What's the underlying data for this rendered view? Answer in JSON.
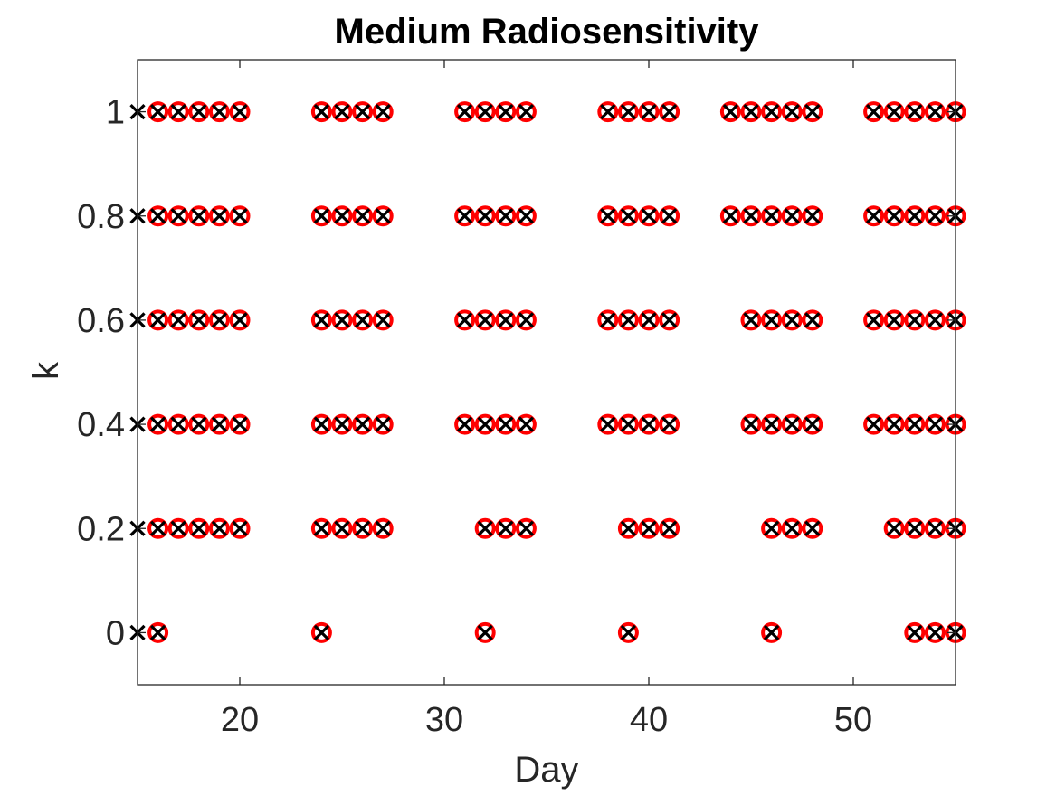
{
  "chart_data": {
    "type": "scatter",
    "title": "Medium Radiosensitivity",
    "xlabel": "Day",
    "ylabel": "k",
    "xlim": [
      15,
      55
    ],
    "ylim": [
      -0.1,
      1.1
    ],
    "xticks": [
      20,
      30,
      40,
      50
    ],
    "yticks": [
      0,
      0.2,
      0.4,
      0.6,
      0.8,
      1
    ],
    "ytick_labels": [
      "0",
      "0.2",
      "0.4",
      "0.6",
      "0.8",
      "1"
    ],
    "grid": false,
    "legend": "none",
    "series": [
      {
        "marker": "circle",
        "color": "#ff0000",
        "points": [
          [
            16,
            1
          ],
          [
            17,
            1
          ],
          [
            18,
            1
          ],
          [
            19,
            1
          ],
          [
            20,
            1
          ],
          [
            24,
            1
          ],
          [
            25,
            1
          ],
          [
            26,
            1
          ],
          [
            27,
            1
          ],
          [
            31,
            1
          ],
          [
            32,
            1
          ],
          [
            33,
            1
          ],
          [
            34,
            1
          ],
          [
            38,
            1
          ],
          [
            39,
            1
          ],
          [
            40,
            1
          ],
          [
            41,
            1
          ],
          [
            44,
            1
          ],
          [
            45,
            1
          ],
          [
            46,
            1
          ],
          [
            47,
            1
          ],
          [
            48,
            1
          ],
          [
            51,
            1
          ],
          [
            52,
            1
          ],
          [
            53,
            1
          ],
          [
            54,
            1
          ],
          [
            55,
            1
          ],
          [
            16,
            0.8
          ],
          [
            17,
            0.8
          ],
          [
            18,
            0.8
          ],
          [
            19,
            0.8
          ],
          [
            20,
            0.8
          ],
          [
            24,
            0.8
          ],
          [
            25,
            0.8
          ],
          [
            26,
            0.8
          ],
          [
            27,
            0.8
          ],
          [
            31,
            0.8
          ],
          [
            32,
            0.8
          ],
          [
            33,
            0.8
          ],
          [
            34,
            0.8
          ],
          [
            38,
            0.8
          ],
          [
            39,
            0.8
          ],
          [
            40,
            0.8
          ],
          [
            41,
            0.8
          ],
          [
            44,
            0.8
          ],
          [
            45,
            0.8
          ],
          [
            46,
            0.8
          ],
          [
            47,
            0.8
          ],
          [
            48,
            0.8
          ],
          [
            51,
            0.8
          ],
          [
            52,
            0.8
          ],
          [
            53,
            0.8
          ],
          [
            54,
            0.8
          ],
          [
            55,
            0.8
          ],
          [
            16,
            0.6
          ],
          [
            17,
            0.6
          ],
          [
            18,
            0.6
          ],
          [
            19,
            0.6
          ],
          [
            20,
            0.6
          ],
          [
            24,
            0.6
          ],
          [
            25,
            0.6
          ],
          [
            26,
            0.6
          ],
          [
            27,
            0.6
          ],
          [
            31,
            0.6
          ],
          [
            32,
            0.6
          ],
          [
            33,
            0.6
          ],
          [
            34,
            0.6
          ],
          [
            38,
            0.6
          ],
          [
            39,
            0.6
          ],
          [
            40,
            0.6
          ],
          [
            41,
            0.6
          ],
          [
            45,
            0.6
          ],
          [
            46,
            0.6
          ],
          [
            47,
            0.6
          ],
          [
            48,
            0.6
          ],
          [
            51,
            0.6
          ],
          [
            52,
            0.6
          ],
          [
            53,
            0.6
          ],
          [
            54,
            0.6
          ],
          [
            55,
            0.6
          ],
          [
            16,
            0.4
          ],
          [
            17,
            0.4
          ],
          [
            18,
            0.4
          ],
          [
            19,
            0.4
          ],
          [
            20,
            0.4
          ],
          [
            24,
            0.4
          ],
          [
            25,
            0.4
          ],
          [
            26,
            0.4
          ],
          [
            27,
            0.4
          ],
          [
            31,
            0.4
          ],
          [
            32,
            0.4
          ],
          [
            33,
            0.4
          ],
          [
            34,
            0.4
          ],
          [
            38,
            0.4
          ],
          [
            39,
            0.4
          ],
          [
            40,
            0.4
          ],
          [
            41,
            0.4
          ],
          [
            45,
            0.4
          ],
          [
            46,
            0.4
          ],
          [
            47,
            0.4
          ],
          [
            48,
            0.4
          ],
          [
            51,
            0.4
          ],
          [
            52,
            0.4
          ],
          [
            53,
            0.4
          ],
          [
            54,
            0.4
          ],
          [
            55,
            0.4
          ],
          [
            16,
            0.2
          ],
          [
            17,
            0.2
          ],
          [
            18,
            0.2
          ],
          [
            19,
            0.2
          ],
          [
            20,
            0.2
          ],
          [
            24,
            0.2
          ],
          [
            25,
            0.2
          ],
          [
            26,
            0.2
          ],
          [
            27,
            0.2
          ],
          [
            32,
            0.2
          ],
          [
            33,
            0.2
          ],
          [
            34,
            0.2
          ],
          [
            39,
            0.2
          ],
          [
            40,
            0.2
          ],
          [
            41,
            0.2
          ],
          [
            46,
            0.2
          ],
          [
            47,
            0.2
          ],
          [
            48,
            0.2
          ],
          [
            52,
            0.2
          ],
          [
            53,
            0.2
          ],
          [
            54,
            0.2
          ],
          [
            55,
            0.2
          ],
          [
            16,
            0
          ],
          [
            24,
            0
          ],
          [
            32,
            0
          ],
          [
            39,
            0
          ],
          [
            46,
            0
          ],
          [
            53,
            0
          ],
          [
            54,
            0
          ],
          [
            55,
            0
          ]
        ]
      },
      {
        "marker": "x",
        "color": "#000000",
        "points": [
          [
            15,
            1
          ],
          [
            16,
            1
          ],
          [
            17,
            1
          ],
          [
            18,
            1
          ],
          [
            19,
            1
          ],
          [
            20,
            1
          ],
          [
            24,
            1
          ],
          [
            25,
            1
          ],
          [
            26,
            1
          ],
          [
            27,
            1
          ],
          [
            31,
            1
          ],
          [
            32,
            1
          ],
          [
            33,
            1
          ],
          [
            34,
            1
          ],
          [
            38,
            1
          ],
          [
            39,
            1
          ],
          [
            40,
            1
          ],
          [
            41,
            1
          ],
          [
            44,
            1
          ],
          [
            45,
            1
          ],
          [
            46,
            1
          ],
          [
            47,
            1
          ],
          [
            48,
            1
          ],
          [
            51,
            1
          ],
          [
            52,
            1
          ],
          [
            53,
            1
          ],
          [
            54,
            1
          ],
          [
            55,
            1
          ],
          [
            15,
            0.8
          ],
          [
            16,
            0.8
          ],
          [
            17,
            0.8
          ],
          [
            18,
            0.8
          ],
          [
            19,
            0.8
          ],
          [
            20,
            0.8
          ],
          [
            24,
            0.8
          ],
          [
            25,
            0.8
          ],
          [
            26,
            0.8
          ],
          [
            27,
            0.8
          ],
          [
            31,
            0.8
          ],
          [
            32,
            0.8
          ],
          [
            33,
            0.8
          ],
          [
            34,
            0.8
          ],
          [
            38,
            0.8
          ],
          [
            39,
            0.8
          ],
          [
            40,
            0.8
          ],
          [
            41,
            0.8
          ],
          [
            44,
            0.8
          ],
          [
            45,
            0.8
          ],
          [
            46,
            0.8
          ],
          [
            47,
            0.8
          ],
          [
            48,
            0.8
          ],
          [
            51,
            0.8
          ],
          [
            52,
            0.8
          ],
          [
            53,
            0.8
          ],
          [
            54,
            0.8
          ],
          [
            55,
            0.8
          ],
          [
            15,
            0.6
          ],
          [
            16,
            0.6
          ],
          [
            17,
            0.6
          ],
          [
            18,
            0.6
          ],
          [
            19,
            0.6
          ],
          [
            20,
            0.6
          ],
          [
            24,
            0.6
          ],
          [
            25,
            0.6
          ],
          [
            26,
            0.6
          ],
          [
            27,
            0.6
          ],
          [
            31,
            0.6
          ],
          [
            32,
            0.6
          ],
          [
            33,
            0.6
          ],
          [
            34,
            0.6
          ],
          [
            38,
            0.6
          ],
          [
            39,
            0.6
          ],
          [
            40,
            0.6
          ],
          [
            41,
            0.6
          ],
          [
            45,
            0.6
          ],
          [
            46,
            0.6
          ],
          [
            47,
            0.6
          ],
          [
            48,
            0.6
          ],
          [
            51,
            0.6
          ],
          [
            52,
            0.6
          ],
          [
            53,
            0.6
          ],
          [
            54,
            0.6
          ],
          [
            55,
            0.6
          ],
          [
            15,
            0.4
          ],
          [
            16,
            0.4
          ],
          [
            17,
            0.4
          ],
          [
            18,
            0.4
          ],
          [
            19,
            0.4
          ],
          [
            20,
            0.4
          ],
          [
            24,
            0.4
          ],
          [
            25,
            0.4
          ],
          [
            26,
            0.4
          ],
          [
            27,
            0.4
          ],
          [
            31,
            0.4
          ],
          [
            32,
            0.4
          ],
          [
            33,
            0.4
          ],
          [
            34,
            0.4
          ],
          [
            38,
            0.4
          ],
          [
            39,
            0.4
          ],
          [
            40,
            0.4
          ],
          [
            41,
            0.4
          ],
          [
            45,
            0.4
          ],
          [
            46,
            0.4
          ],
          [
            47,
            0.4
          ],
          [
            48,
            0.4
          ],
          [
            51,
            0.4
          ],
          [
            52,
            0.4
          ],
          [
            53,
            0.4
          ],
          [
            54,
            0.4
          ],
          [
            55,
            0.4
          ],
          [
            15,
            0.2
          ],
          [
            16,
            0.2
          ],
          [
            17,
            0.2
          ],
          [
            18,
            0.2
          ],
          [
            19,
            0.2
          ],
          [
            20,
            0.2
          ],
          [
            24,
            0.2
          ],
          [
            25,
            0.2
          ],
          [
            26,
            0.2
          ],
          [
            27,
            0.2
          ],
          [
            32,
            0.2
          ],
          [
            33,
            0.2
          ],
          [
            34,
            0.2
          ],
          [
            39,
            0.2
          ],
          [
            40,
            0.2
          ],
          [
            41,
            0.2
          ],
          [
            46,
            0.2
          ],
          [
            47,
            0.2
          ],
          [
            48,
            0.2
          ],
          [
            52,
            0.2
          ],
          [
            53,
            0.2
          ],
          [
            54,
            0.2
          ],
          [
            55,
            0.2
          ],
          [
            15,
            0
          ],
          [
            16,
            0
          ],
          [
            24,
            0
          ],
          [
            32,
            0
          ],
          [
            39,
            0
          ],
          [
            46,
            0
          ],
          [
            53,
            0
          ],
          [
            54,
            0
          ],
          [
            55,
            0
          ]
        ]
      }
    ]
  }
}
